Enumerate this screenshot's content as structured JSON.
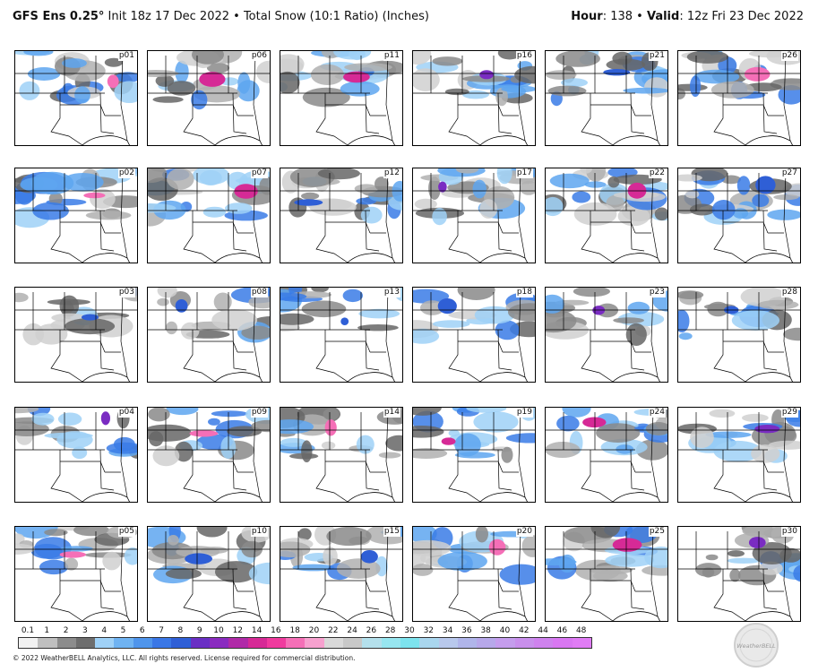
{
  "header": {
    "model": "GFS Ens 0.25",
    "deg": "°",
    "init": " Init 18z 17 Dec 2022",
    "bullet": " • ",
    "product": "Total Snow (10:1 Ratio) (Inches)",
    "hour_label": "Hour",
    "hour_value": ": 138",
    "valid_label": "Valid",
    "valid_value": ": 12z Fri 23 Dec 2022"
  },
  "panels": [
    [
      "p01",
      "p06",
      "p11",
      "p16",
      "p21",
      "p26"
    ],
    [
      "p02",
      "p07",
      "p12",
      "p17",
      "p22",
      "p27"
    ],
    [
      "p03",
      "p08",
      "p13",
      "p18",
      "p23",
      "p28"
    ],
    [
      "p04",
      "p09",
      "p14",
      "p19",
      "p24",
      "p29"
    ],
    [
      "p05",
      "p10",
      "p15",
      "p20",
      "p25",
      "p30"
    ]
  ],
  "colorbar": {
    "ticks": [
      "0.1",
      "1",
      "2",
      "3",
      "4",
      "5",
      "6",
      "7",
      "8",
      "9",
      "10",
      "12",
      "14",
      "16",
      "18",
      "20",
      "22",
      "24",
      "26",
      "28",
      "30",
      "32",
      "34",
      "36",
      "38",
      "40",
      "42",
      "44",
      "46",
      "48"
    ],
    "colors": [
      "#f2f2f2",
      "#bfbfbf",
      "#8c8c8c",
      "#6e6e6e",
      "#9fd1f7",
      "#6fb3f2",
      "#4f95ec",
      "#3a77e6",
      "#2f5fd6",
      "#6a2fc4",
      "#8a2bc0",
      "#b02aa8",
      "#d62a96",
      "#f03a9e",
      "#f56fb7",
      "#f7a1cf",
      "#d9d9d9",
      "#c8c8c8",
      "#b4e0ec",
      "#97e6f0",
      "#7de3ee",
      "#a9d6ee",
      "#b8c8ec",
      "#b0b5ea",
      "#b7a8ea",
      "#c59ded",
      "#c98fec",
      "#cf82ee",
      "#d977f2",
      "#e07cf5"
    ]
  },
  "footer": "© 2022 WeatherBELL Analytics, LLC. All rights reserved. License required for commercial distribution.",
  "logo_text": "WeatherBELL"
}
